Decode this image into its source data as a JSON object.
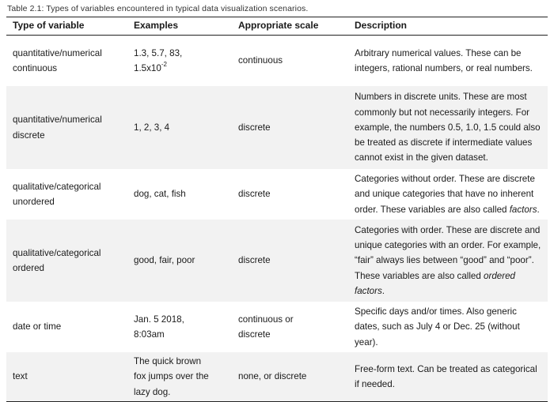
{
  "caption": "Table 2.1: Types of variables encountered in typical data visualization scenarios.",
  "headers": {
    "type": "Type of variable",
    "examples": "Examples",
    "scale": "Appropriate scale",
    "description": "Description"
  },
  "rows": [
    {
      "type": [
        "quantitative/numerical",
        "continuous"
      ],
      "examples_line1": "1.3, 5.7, 83,",
      "examples_base": "1.5x10",
      "examples_exp": "-2",
      "scale": [
        "continuous"
      ],
      "description": [
        "Arbitrary numerical values. These can be",
        "integers, rational numbers, or real numbers."
      ]
    },
    {
      "type": [
        "quantitative/numerical",
        "discrete"
      ],
      "examples": [
        "1, 2, 3, 4"
      ],
      "scale": [
        "discrete"
      ],
      "description": [
        "Numbers in discrete units. These are most",
        "commonly but not necessarily integers. For",
        "example, the numbers 0.5, 1.0, 1.5 could also",
        "be treated as discrete if intermediate values",
        "cannot exist in the given dataset."
      ]
    },
    {
      "type": [
        "qualitative/categorical",
        "unordered"
      ],
      "examples": [
        "dog, cat, fish"
      ],
      "scale": [
        "discrete"
      ],
      "description_lines": [
        "Categories without order. These are discrete",
        "and unique categories that have no inherent"
      ],
      "description_pre": "order. These variables are also called ",
      "description_em": "factors",
      "description_post": "."
    },
    {
      "type": [
        "qualitative/categorical",
        "ordered"
      ],
      "examples": [
        "good, fair, poor"
      ],
      "scale": [
        "discrete"
      ],
      "description_lines": [
        "Categories with order. These are discrete and",
        "unique categories with an order. For example,",
        "“fair” always lies between “good” and “poor”."
      ],
      "description_pre": "These variables are also called ",
      "description_em": "ordered",
      "description_em2": "factors",
      "description_post": "."
    },
    {
      "type": [
        "date or time"
      ],
      "examples": [
        "Jan. 5 2018,",
        "8:03am"
      ],
      "scale": [
        "continuous or",
        "discrete"
      ],
      "description": [
        "Specific days and/or times. Also generic",
        "dates, such as July 4 or Dec. 25 (without",
        "year)."
      ]
    },
    {
      "type": [
        "text"
      ],
      "examples": [
        "The quick brown",
        "fox jumps over the",
        "lazy dog."
      ],
      "scale": [
        "none, or discrete"
      ],
      "description": [
        "Free-form text. Can be treated as categorical",
        "if needed."
      ]
    }
  ]
}
